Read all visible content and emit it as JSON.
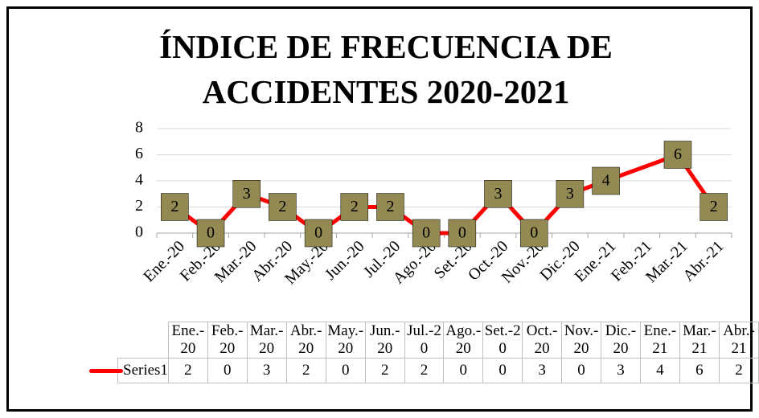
{
  "chart_data": {
    "type": "line",
    "title": "ÍNDICE DE FRECUENCIA DE ACCIDENTES 2020-2021",
    "categories": [
      "Ene.-20",
      "Feb.-20",
      "Mar.-20",
      "Abr.-20",
      "May.-20",
      "Jun.-20",
      "Jul.-20",
      "Ago.-20",
      "Set.-20",
      "Oct.-20",
      "Nov.-20",
      "Dic.-20",
      "Ene.-21",
      "Feb.-21",
      "Mar.-21",
      "Abr.-21"
    ],
    "series": [
      {
        "name": "Series1",
        "color": "#ff0000",
        "marker_color": "#938953",
        "values": [
          2,
          0,
          3,
          2,
          0,
          2,
          2,
          0,
          0,
          3,
          0,
          3,
          4,
          null,
          6,
          2
        ]
      }
    ],
    "ylim": [
      0,
      8
    ],
    "yticks": [
      0,
      2,
      4,
      6,
      8
    ],
    "grid": true
  }
}
